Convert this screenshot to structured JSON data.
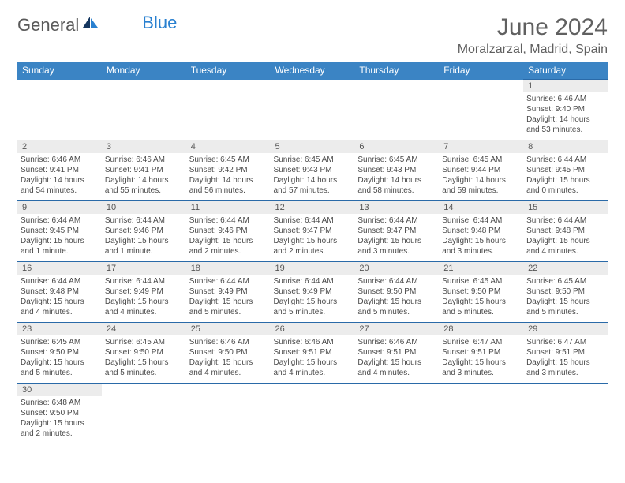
{
  "logo": {
    "general": "General",
    "blue": "Blue"
  },
  "title": "June 2024",
  "location": "Moralzarzal, Madrid, Spain",
  "colors": {
    "header_bg": "#3b84c4",
    "header_text": "#ffffff",
    "daynum_bg": "#ececec",
    "border": "#2a6aa8",
    "text": "#4a4a4a",
    "title_text": "#606060",
    "logo_blue": "#2980d0"
  },
  "day_headers": [
    "Sunday",
    "Monday",
    "Tuesday",
    "Wednesday",
    "Thursday",
    "Friday",
    "Saturday"
  ],
  "weeks": [
    [
      null,
      null,
      null,
      null,
      null,
      null,
      {
        "n": "1",
        "sr": "Sunrise: 6:46 AM",
        "ss": "Sunset: 9:40 PM",
        "d1": "Daylight: 14 hours",
        "d2": "and 53 minutes."
      }
    ],
    [
      {
        "n": "2",
        "sr": "Sunrise: 6:46 AM",
        "ss": "Sunset: 9:41 PM",
        "d1": "Daylight: 14 hours",
        "d2": "and 54 minutes."
      },
      {
        "n": "3",
        "sr": "Sunrise: 6:46 AM",
        "ss": "Sunset: 9:41 PM",
        "d1": "Daylight: 14 hours",
        "d2": "and 55 minutes."
      },
      {
        "n": "4",
        "sr": "Sunrise: 6:45 AM",
        "ss": "Sunset: 9:42 PM",
        "d1": "Daylight: 14 hours",
        "d2": "and 56 minutes."
      },
      {
        "n": "5",
        "sr": "Sunrise: 6:45 AM",
        "ss": "Sunset: 9:43 PM",
        "d1": "Daylight: 14 hours",
        "d2": "and 57 minutes."
      },
      {
        "n": "6",
        "sr": "Sunrise: 6:45 AM",
        "ss": "Sunset: 9:43 PM",
        "d1": "Daylight: 14 hours",
        "d2": "and 58 minutes."
      },
      {
        "n": "7",
        "sr": "Sunrise: 6:45 AM",
        "ss": "Sunset: 9:44 PM",
        "d1": "Daylight: 14 hours",
        "d2": "and 59 minutes."
      },
      {
        "n": "8",
        "sr": "Sunrise: 6:44 AM",
        "ss": "Sunset: 9:45 PM",
        "d1": "Daylight: 15 hours",
        "d2": "and 0 minutes."
      }
    ],
    [
      {
        "n": "9",
        "sr": "Sunrise: 6:44 AM",
        "ss": "Sunset: 9:45 PM",
        "d1": "Daylight: 15 hours",
        "d2": "and 1 minute."
      },
      {
        "n": "10",
        "sr": "Sunrise: 6:44 AM",
        "ss": "Sunset: 9:46 PM",
        "d1": "Daylight: 15 hours",
        "d2": "and 1 minute."
      },
      {
        "n": "11",
        "sr": "Sunrise: 6:44 AM",
        "ss": "Sunset: 9:46 PM",
        "d1": "Daylight: 15 hours",
        "d2": "and 2 minutes."
      },
      {
        "n": "12",
        "sr": "Sunrise: 6:44 AM",
        "ss": "Sunset: 9:47 PM",
        "d1": "Daylight: 15 hours",
        "d2": "and 2 minutes."
      },
      {
        "n": "13",
        "sr": "Sunrise: 6:44 AM",
        "ss": "Sunset: 9:47 PM",
        "d1": "Daylight: 15 hours",
        "d2": "and 3 minutes."
      },
      {
        "n": "14",
        "sr": "Sunrise: 6:44 AM",
        "ss": "Sunset: 9:48 PM",
        "d1": "Daylight: 15 hours",
        "d2": "and 3 minutes."
      },
      {
        "n": "15",
        "sr": "Sunrise: 6:44 AM",
        "ss": "Sunset: 9:48 PM",
        "d1": "Daylight: 15 hours",
        "d2": "and 4 minutes."
      }
    ],
    [
      {
        "n": "16",
        "sr": "Sunrise: 6:44 AM",
        "ss": "Sunset: 9:48 PM",
        "d1": "Daylight: 15 hours",
        "d2": "and 4 minutes."
      },
      {
        "n": "17",
        "sr": "Sunrise: 6:44 AM",
        "ss": "Sunset: 9:49 PM",
        "d1": "Daylight: 15 hours",
        "d2": "and 4 minutes."
      },
      {
        "n": "18",
        "sr": "Sunrise: 6:44 AM",
        "ss": "Sunset: 9:49 PM",
        "d1": "Daylight: 15 hours",
        "d2": "and 5 minutes."
      },
      {
        "n": "19",
        "sr": "Sunrise: 6:44 AM",
        "ss": "Sunset: 9:49 PM",
        "d1": "Daylight: 15 hours",
        "d2": "and 5 minutes."
      },
      {
        "n": "20",
        "sr": "Sunrise: 6:44 AM",
        "ss": "Sunset: 9:50 PM",
        "d1": "Daylight: 15 hours",
        "d2": "and 5 minutes."
      },
      {
        "n": "21",
        "sr": "Sunrise: 6:45 AM",
        "ss": "Sunset: 9:50 PM",
        "d1": "Daylight: 15 hours",
        "d2": "and 5 minutes."
      },
      {
        "n": "22",
        "sr": "Sunrise: 6:45 AM",
        "ss": "Sunset: 9:50 PM",
        "d1": "Daylight: 15 hours",
        "d2": "and 5 minutes."
      }
    ],
    [
      {
        "n": "23",
        "sr": "Sunrise: 6:45 AM",
        "ss": "Sunset: 9:50 PM",
        "d1": "Daylight: 15 hours",
        "d2": "and 5 minutes."
      },
      {
        "n": "24",
        "sr": "Sunrise: 6:45 AM",
        "ss": "Sunset: 9:50 PM",
        "d1": "Daylight: 15 hours",
        "d2": "and 5 minutes."
      },
      {
        "n": "25",
        "sr": "Sunrise: 6:46 AM",
        "ss": "Sunset: 9:50 PM",
        "d1": "Daylight: 15 hours",
        "d2": "and 4 minutes."
      },
      {
        "n": "26",
        "sr": "Sunrise: 6:46 AM",
        "ss": "Sunset: 9:51 PM",
        "d1": "Daylight: 15 hours",
        "d2": "and 4 minutes."
      },
      {
        "n": "27",
        "sr": "Sunrise: 6:46 AM",
        "ss": "Sunset: 9:51 PM",
        "d1": "Daylight: 15 hours",
        "d2": "and 4 minutes."
      },
      {
        "n": "28",
        "sr": "Sunrise: 6:47 AM",
        "ss": "Sunset: 9:51 PM",
        "d1": "Daylight: 15 hours",
        "d2": "and 3 minutes."
      },
      {
        "n": "29",
        "sr": "Sunrise: 6:47 AM",
        "ss": "Sunset: 9:51 PM",
        "d1": "Daylight: 15 hours",
        "d2": "and 3 minutes."
      }
    ],
    [
      {
        "n": "30",
        "sr": "Sunrise: 6:48 AM",
        "ss": "Sunset: 9:50 PM",
        "d1": "Daylight: 15 hours",
        "d2": "and 2 minutes."
      },
      null,
      null,
      null,
      null,
      null,
      null
    ]
  ]
}
